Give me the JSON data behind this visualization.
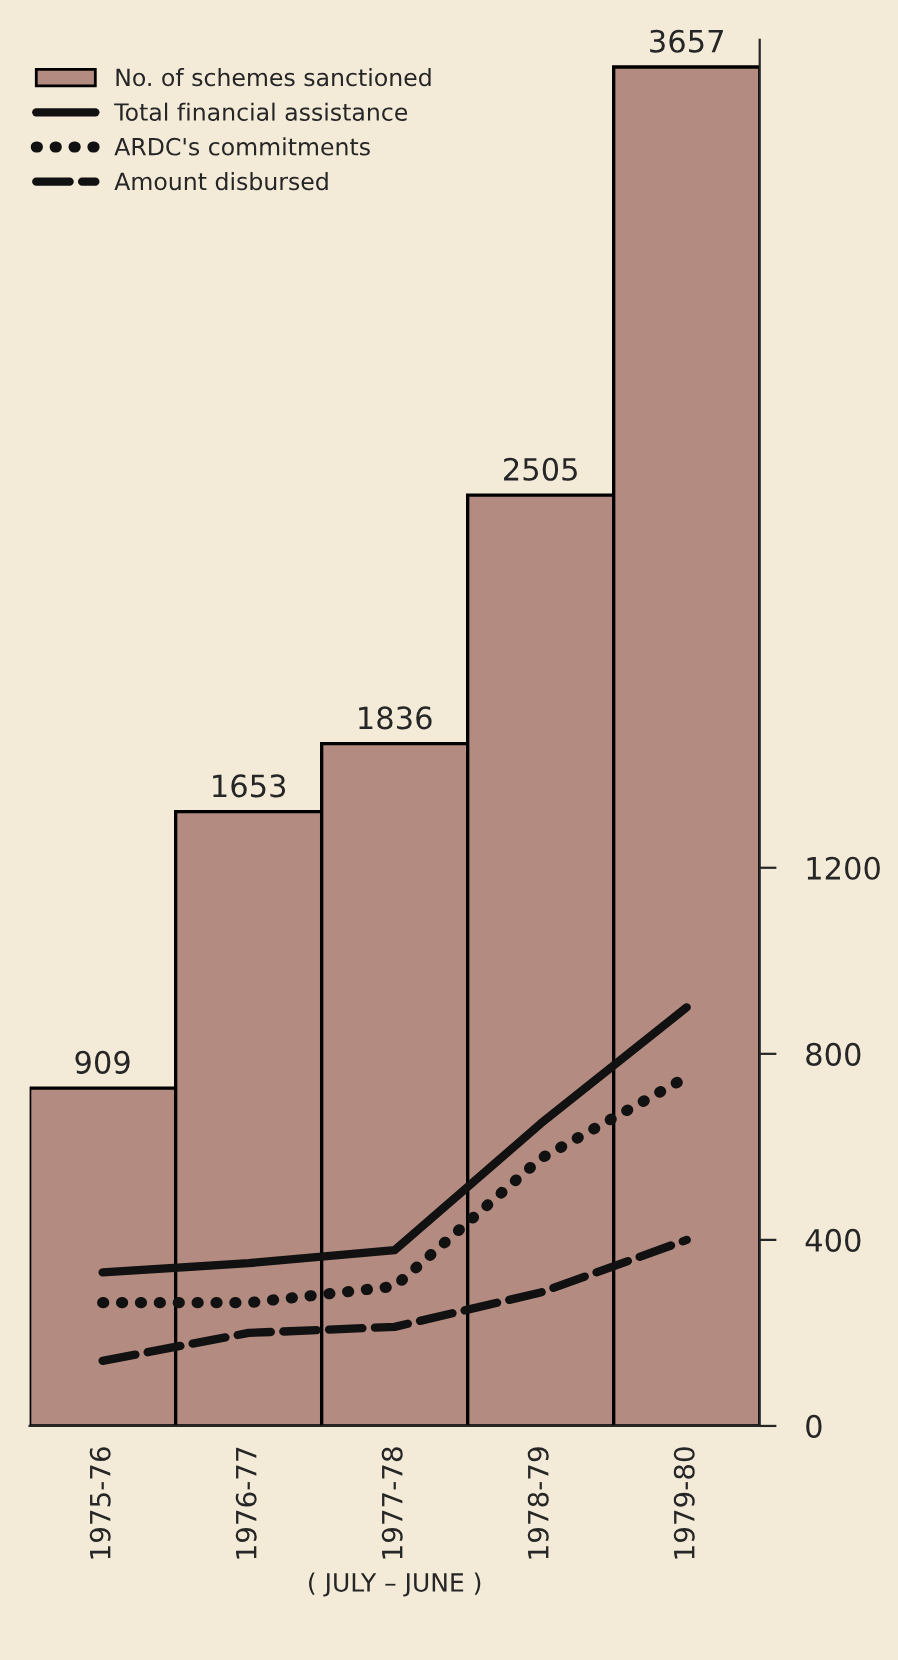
{
  "chart_data": {
    "type": "bar",
    "xlabel": "( JULY – JUNE )",
    "categories": [
      "1975-76",
      "1976-77",
      "1977-78",
      "1978-79",
      "1979-80"
    ],
    "legend": "top left",
    "grid": false,
    "y2lim": [
      0,
      2980
    ],
    "y2ticks": [
      0,
      400,
      800,
      1200
    ],
    "series": [
      {
        "name": "No. of schemes sanctioned",
        "color": "#b38b80",
        "values": [
          909,
          1653,
          1836,
          2505,
          3657
        ],
        "value_labels": [
          "909",
          "1653",
          "1836",
          "2505",
          "3657"
        ]
      },
      {
        "name": "Total financial assistance",
        "type": "line",
        "axis": "y2",
        "color": "#111111",
        "line_style": "solid",
        "values": [
          330,
          350,
          378,
          650,
          900
        ]
      },
      {
        "name": "ARDC's commitments",
        "type": "line",
        "axis": "y2",
        "color": "#111111",
        "line_style": "dotted",
        "values": [
          265,
          265,
          300,
          575,
          750
        ]
      },
      {
        "name": "Amount disbursed",
        "type": "line",
        "axis": "y2",
        "color": "#111111",
        "line_style": "dashed",
        "values": [
          140,
          200,
          213,
          287,
          400
        ]
      }
    ]
  }
}
